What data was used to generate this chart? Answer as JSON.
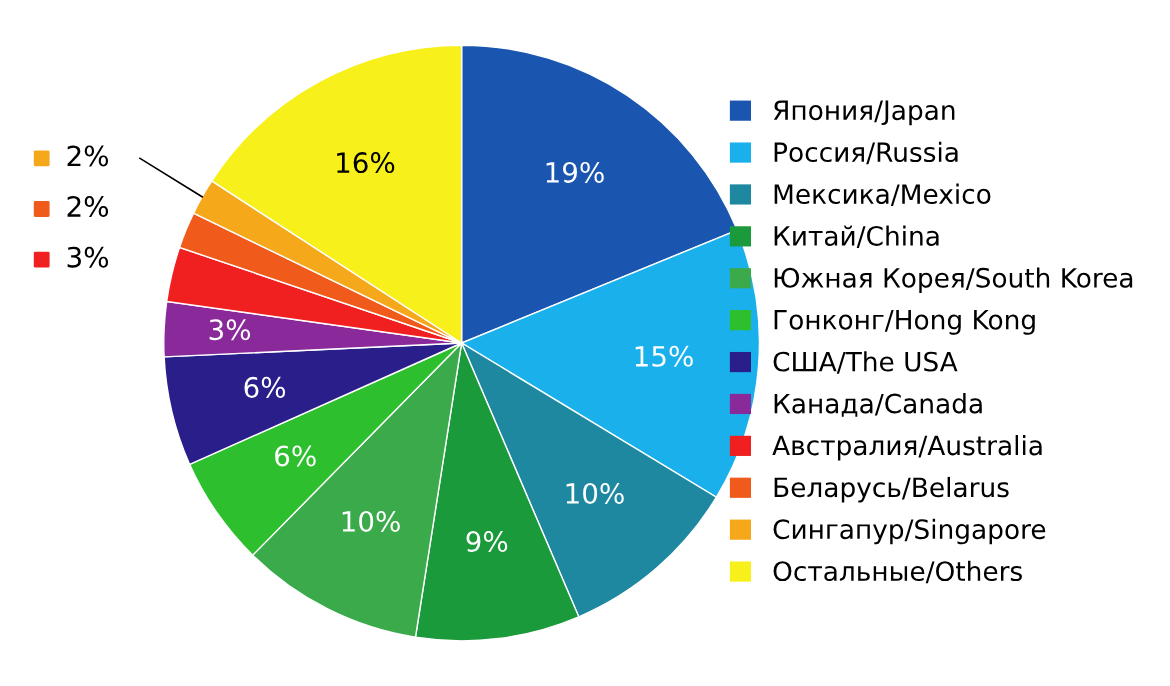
{
  "chart_data": {
    "type": "pie",
    "categories": [
      "Япония/Japan",
      "Россия/Russia",
      "Мексика/Mexico",
      "Китай/China",
      "Южная Корея/South Korea",
      "Гонконг/Hong Kong",
      "США/The USA",
      "Канада/Canada",
      "Австралия/Australia",
      "Беларусь/Belarus",
      "Сингапур/Singapore",
      "Остальные/Others"
    ],
    "values": [
      19,
      15,
      10,
      9,
      10,
      6,
      6,
      3,
      3,
      2,
      2,
      16
    ],
    "colors": [
      "#1a56b0",
      "#1ab0ec",
      "#1e88a0",
      "#1a9a3a",
      "#3aaa4a",
      "#2ebf2e",
      "#2a1f8a",
      "#8a2a9a",
      "#f02020",
      "#f05a1a",
      "#f5a81a",
      "#f8f01a"
    ],
    "value_labels": [
      "19%",
      "15%",
      "10%",
      "9%",
      "10%",
      "6%",
      "6%",
      "3%",
      "3%",
      "2%",
      "2%",
      "16%"
    ],
    "legend": "right"
  }
}
